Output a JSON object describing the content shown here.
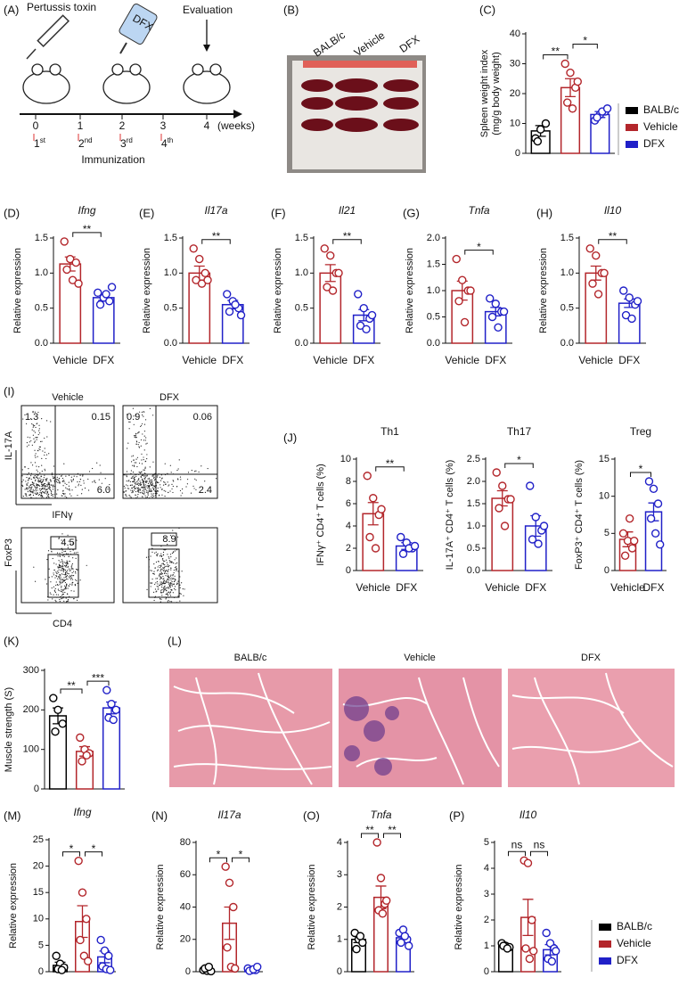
{
  "panel_labels": [
    "(A)",
    "(B)",
    "(C)",
    "(D)",
    "(E)",
    "(F)",
    "(G)",
    "(H)",
    "(I)",
    "(J)",
    "(K)",
    "(L)",
    "(M)",
    "(N)",
    "(O)",
    "(P)"
  ],
  "schematic": {
    "injection": "Pertussis toxin",
    "drug": "DFX",
    "evaluation": "Evaluation",
    "weeks": [
      "0",
      "1",
      "2",
      "3",
      "4"
    ],
    "unit": "(weeks)",
    "immunizations": [
      [
        "1",
        "st"
      ],
      [
        "2",
        "nd"
      ],
      [
        "3",
        "rd"
      ],
      [
        "4",
        "th"
      ]
    ],
    "immunization_label": "Immunization"
  },
  "photo": {
    "groups": [
      "BALB/c",
      "Vehicle",
      "DFX"
    ]
  },
  "flow": {
    "columns": [
      "Vehicle",
      "DFX"
    ],
    "top_y": "IL-17A",
    "top_x": "IFNγ",
    "bottom_y": "FoxP3",
    "bottom_x": "CD4",
    "quadrants": [
      [
        "1.3",
        "0.15",
        "6.0"
      ],
      [
        "0.9",
        "0.06",
        "2.4"
      ]
    ],
    "gates": [
      "4.5",
      "8.9"
    ]
  },
  "histology": {
    "groups": [
      "BALB/c",
      "Vehicle",
      "DFX"
    ]
  },
  "chart_data": [
    {
      "type": "bar",
      "ylabel": "Spleen weight index\n(mg/g body weight)",
      "categories": [
        "BALB/c",
        "Vehicle",
        "DFX"
      ],
      "colors": [
        "#000000",
        "#b3262b",
        "#2020c8"
      ],
      "values": [
        7.5,
        22,
        13
      ],
      "errors": [
        1.8,
        3,
        1
      ],
      "points": [
        [
          5,
          8,
          10,
          4
        ],
        [
          30,
          27,
          22,
          17,
          15,
          24
        ],
        [
          11,
          13,
          14,
          12,
          14,
          15
        ]
      ],
      "ylim": [
        0,
        40
      ],
      "yticks": [
        0,
        10,
        20,
        30,
        40
      ],
      "significance": [
        {
          "label": "**",
          "pair": [
            "BALB/c",
            "Vehicle"
          ]
        },
        {
          "label": "*",
          "pair": [
            "Vehicle",
            "DFX"
          ]
        }
      ],
      "category_labels": false,
      "legend": true
    },
    {
      "type": "bar",
      "title": "Ifng",
      "title_italic": true,
      "ylabel": "Relative  expression",
      "categories": [
        "Vehicle",
        "DFX"
      ],
      "colors": [
        "#b3262b",
        "#2020c8"
      ],
      "values": [
        1.13,
        0.65
      ],
      "errors": [
        0.1,
        0.04
      ],
      "points": [
        [
          1.45,
          1.2,
          1.15,
          1.05,
          0.9,
          0.85
        ],
        [
          0.72,
          0.65,
          0.6,
          0.55,
          0.7,
          0.8
        ]
      ],
      "ylim": [
        0,
        1.5
      ],
      "yticks": [
        {
          "value": 0,
          "label": "0.0"
        },
        0.5,
        {
          "value": 1,
          "label": "1.0"
        },
        1.5
      ],
      "significance": [
        {
          "label": "**",
          "pair": [
            "Vehicle",
            "DFX"
          ]
        }
      ],
      "category_labels": true,
      "legend": false
    },
    {
      "type": "bar",
      "title": "Il17a",
      "title_italic": true,
      "ylabel": "Relative  expression",
      "categories": [
        "Vehicle",
        "DFX"
      ],
      "colors": [
        "#b3262b",
        "#2020c8"
      ],
      "values": [
        1.0,
        0.55
      ],
      "errors": [
        0.1,
        0.06
      ],
      "points": [
        [
          1.35,
          1.2,
          1.0,
          0.9,
          0.85,
          0.9
        ],
        [
          0.7,
          0.6,
          0.5,
          0.45,
          0.55,
          0.4
        ]
      ],
      "ylim": [
        0,
        1.5
      ],
      "yticks": [
        {
          "value": 0,
          "label": "0.0"
        },
        0.5,
        {
          "value": 1,
          "label": "1.0"
        },
        1.5
      ],
      "significance": [
        {
          "label": "**",
          "pair": [
            "Vehicle",
            "DFX"
          ]
        }
      ],
      "category_labels": true,
      "legend": false
    },
    {
      "type": "bar",
      "title": "Il21",
      "title_italic": true,
      "ylabel": "Relative  expression",
      "categories": [
        "Vehicle",
        "DFX"
      ],
      "colors": [
        "#b3262b",
        "#2020c8"
      ],
      "values": [
        1.0,
        0.4
      ],
      "errors": [
        0.12,
        0.08
      ],
      "points": [
        [
          1.35,
          1.25,
          1.0,
          0.8,
          0.75,
          1.0
        ],
        [
          0.7,
          0.5,
          0.35,
          0.25,
          0.2,
          0.4
        ]
      ],
      "ylim": [
        0,
        1.5
      ],
      "yticks": [
        {
          "value": 0,
          "label": "0.0"
        },
        0.5,
        {
          "value": 1,
          "label": "1.0"
        },
        1.5
      ],
      "significance": [
        {
          "label": "**",
          "pair": [
            "Vehicle",
            "DFX"
          ]
        }
      ],
      "category_labels": true,
      "legend": false
    },
    {
      "type": "bar",
      "title": "Tnfa",
      "title_italic": true,
      "ylabel": "Relative  expression",
      "categories": [
        "Vehicle",
        "DFX"
      ],
      "colors": [
        "#b3262b",
        "#2020c8"
      ],
      "values": [
        1.0,
        0.6
      ],
      "errors": [
        0.18,
        0.08
      ],
      "points": [
        [
          1.6,
          1.2,
          1.0,
          0.8,
          0.4,
          1.0
        ],
        [
          0.85,
          0.75,
          0.6,
          0.5,
          0.3,
          0.6
        ]
      ],
      "ylim": [
        0,
        2
      ],
      "yticks": [
        {
          "value": 0,
          "label": "0.0"
        },
        0.5,
        {
          "value": 1,
          "label": "1.0"
        },
        1.5,
        {
          "value": 2,
          "label": "2.0"
        }
      ],
      "significance": [
        {
          "label": "*",
          "pair": [
            "Vehicle",
            "DFX"
          ]
        }
      ],
      "category_labels": true,
      "legend": false
    },
    {
      "type": "bar",
      "title": "Il10",
      "title_italic": true,
      "ylabel": "Relative  expression",
      "categories": [
        "Vehicle",
        "DFX"
      ],
      "colors": [
        "#b3262b",
        "#2020c8"
      ],
      "values": [
        1.0,
        0.57
      ],
      "errors": [
        0.1,
        0.06
      ],
      "points": [
        [
          1.35,
          1.25,
          1.0,
          0.85,
          0.7,
          1.0
        ],
        [
          0.75,
          0.65,
          0.55,
          0.4,
          0.35,
          0.6
        ]
      ],
      "ylim": [
        0,
        1.5
      ],
      "yticks": [
        {
          "value": 0,
          "label": "0.0"
        },
        0.5,
        {
          "value": 1,
          "label": "1.0"
        },
        1.5
      ],
      "significance": [
        {
          "label": "**",
          "pair": [
            "Vehicle",
            "DFX"
          ]
        }
      ],
      "category_labels": true,
      "legend": false
    },
    {
      "type": "bar",
      "title": "Th1",
      "title_italic": false,
      "ylabel": "IFNγ⁺ CD4⁺ T cells (%)",
      "categories": [
        "Vehicle",
        "DFX"
      ],
      "colors": [
        "#b3262b",
        "#2020c8"
      ],
      "values": [
        5.1,
        2.2
      ],
      "errors": [
        1.0,
        0.3
      ],
      "points": [
        [
          8.5,
          6.5,
          5,
          3,
          2,
          5.5
        ],
        [
          3,
          2.5,
          2,
          1.5,
          2,
          2.2
        ]
      ],
      "ylim": [
        0,
        10
      ],
      "yticks": [
        0,
        2,
        4,
        6,
        8,
        10
      ],
      "significance": [
        {
          "label": "**",
          "pair": [
            "Vehicle",
            "DFX"
          ]
        }
      ],
      "category_labels": true,
      "legend": false
    },
    {
      "type": "bar",
      "title": "Th17",
      "title_italic": false,
      "ylabel": "IL-17A⁺ CD4⁺ T cells (%)",
      "categories": [
        "Vehicle",
        "DFX"
      ],
      "colors": [
        "#b3262b",
        "#2020c8"
      ],
      "values": [
        1.62,
        1.0
      ],
      "errors": [
        0.17,
        0.23
      ],
      "points": [
        [
          2.2,
          1.9,
          1.6,
          1.4,
          1.0,
          1.6
        ],
        [
          1.9,
          1.2,
          0.9,
          0.7,
          0.6,
          1.0
        ]
      ],
      "ylim": [
        0,
        2.5
      ],
      "yticks": [
        {
          "value": 0,
          "label": "0.0"
        },
        0.5,
        {
          "value": 1,
          "label": "1.0"
        },
        1.5,
        {
          "value": 2,
          "label": "2.0"
        },
        2.5
      ],
      "significance": [
        {
          "label": "*",
          "pair": [
            "Vehicle",
            "DFX"
          ]
        }
      ],
      "category_labels": true,
      "legend": false
    },
    {
      "type": "bar",
      "title": "Treg",
      "title_italic": false,
      "ylabel": "FoxP3⁺ CD4⁺ T cells (%)",
      "categories": [
        "Vehicle",
        "DFX"
      ],
      "colors": [
        "#b3262b",
        "#2020c8"
      ],
      "values": [
        4.2,
        7.9
      ],
      "errors": [
        1.0,
        1.2
      ],
      "points": [
        [
          5,
          4,
          3,
          2,
          7,
          4
        ],
        [
          12,
          11,
          9,
          7,
          5,
          3.5
        ]
      ],
      "ylim": [
        0,
        15
      ],
      "yticks": [
        0,
        5,
        10,
        15
      ],
      "significance": [
        {
          "label": "*",
          "pair": [
            "Vehicle",
            "DFX"
          ]
        }
      ],
      "category_labels": true,
      "legend": false
    },
    {
      "type": "bar",
      "ylabel": "Muscle strength (S)",
      "categories": [
        "BALB/c",
        "Vehicle",
        "DFX"
      ],
      "colors": [
        "#000000",
        "#b3262b",
        "#2020c8"
      ],
      "values": [
        185,
        95,
        205
      ],
      "errors": [
        20,
        12,
        15
      ],
      "points": [
        [
          230,
          200,
          165,
          145
        ],
        [
          130,
          100,
          90,
          70,
          85
        ],
        [
          250,
          215,
          200,
          180,
          175
        ]
      ],
      "ylim": [
        0,
        300
      ],
      "yticks": [
        0,
        100,
        200,
        300
      ],
      "significance": [
        {
          "label": "**",
          "pair": [
            "BALB/c",
            "Vehicle"
          ]
        },
        {
          "label": "***",
          "pair": [
            "Vehicle",
            "DFX"
          ]
        }
      ],
      "category_labels": false,
      "legend": false
    },
    {
      "type": "bar",
      "title": "Ifng",
      "title_italic": true,
      "ylabel": "Relative  expression",
      "categories": [
        "BALB/c",
        "Vehicle",
        "DFX"
      ],
      "colors": [
        "#000000",
        "#b3262b",
        "#2020c8"
      ],
      "values": [
        1.2,
        9.5,
        2.8
      ],
      "errors": [
        0.6,
        3,
        1.1
      ],
      "points": [
        [
          3,
          1.5,
          0.8,
          0.5,
          0.3
        ],
        [
          21,
          15,
          10,
          6,
          3,
          2
        ],
        [
          6,
          4,
          3,
          1,
          0.5,
          0.3
        ]
      ],
      "ylim": [
        0,
        25
      ],
      "yticks": [
        0,
        5,
        10,
        15,
        20,
        25
      ],
      "significance": [
        {
          "label": "*",
          "pair": [
            "BALB/c",
            "Vehicle"
          ]
        },
        {
          "label": "*",
          "pair": [
            "Vehicle",
            "DFX"
          ]
        }
      ],
      "category_labels": false,
      "legend": false
    },
    {
      "type": "bar",
      "title": "Il17a",
      "title_italic": true,
      "ylabel": "Relative  expression",
      "categories": [
        "BALB/c",
        "Vehicle",
        "DFX"
      ],
      "colors": [
        "#000000",
        "#b3262b",
        "#2020c8"
      ],
      "values": [
        1,
        30,
        1.5
      ],
      "errors": [
        0.5,
        10,
        0.4
      ],
      "points": [
        [
          1,
          0.5,
          0.3,
          2,
          3
        ],
        [
          65,
          55,
          40,
          15,
          3,
          2
        ],
        [
          2,
          1,
          1,
          0.5,
          1.5,
          3
        ]
      ],
      "ylim": [
        0,
        80
      ],
      "yticks": [
        0,
        20,
        40,
        60,
        80
      ],
      "significance": [
        {
          "label": "*",
          "pair": [
            "BALB/c",
            "Vehicle"
          ]
        },
        {
          "label": "*",
          "pair": [
            "Vehicle",
            "DFX"
          ]
        }
      ],
      "category_labels": false,
      "legend": false
    },
    {
      "type": "bar",
      "title": "Tnfa",
      "title_italic": true,
      "ylabel": "Relative  expression",
      "categories": [
        "BALB/c",
        "Vehicle",
        "DFX"
      ],
      "colors": [
        "#000000",
        "#b3262b",
        "#2020c8"
      ],
      "values": [
        1.0,
        2.3,
        1.05
      ],
      "errors": [
        0.1,
        0.35,
        0.1
      ],
      "points": [
        [
          1.2,
          1.0,
          0.9,
          0.7,
          1.1
        ],
        [
          4,
          2.9,
          2.1,
          1.9,
          1.8,
          2.2
        ],
        [
          1.2,
          1.3,
          1.0,
          0.9,
          1.1,
          0.8
        ]
      ],
      "ylim": [
        0,
        4
      ],
      "yticks": [
        0,
        1,
        2,
        3,
        4
      ],
      "significance": [
        {
          "label": "**",
          "pair": [
            "BALB/c",
            "Vehicle"
          ]
        },
        {
          "label": "**",
          "pair": [
            "Vehicle",
            "DFX"
          ]
        }
      ],
      "category_labels": false,
      "legend": false
    },
    {
      "type": "bar",
      "title": "Il10",
      "title_italic": true,
      "ylabel": "Relative  expression",
      "categories": [
        "BALB/c",
        "Vehicle",
        "DFX"
      ],
      "colors": [
        "#000000",
        "#b3262b",
        "#2020c8"
      ],
      "values": [
        1.0,
        2.1,
        0.85
      ],
      "errors": [
        0.05,
        0.7,
        0.2
      ],
      "points": [
        [
          1.1,
          1.0,
          0.95,
          1.0,
          0.9
        ],
        [
          4.3,
          4.2,
          2,
          0.9,
          0.5,
          0.8
        ],
        [
          1.5,
          1.1,
          0.9,
          0.5,
          0.4,
          0.8
        ]
      ],
      "ylim": [
        0,
        5
      ],
      "yticks": [
        0,
        1,
        2,
        3,
        4,
        5
      ],
      "significance": [
        {
          "label": "ns",
          "pair": [
            "BALB/c",
            "Vehicle"
          ]
        },
        {
          "label": "ns",
          "pair": [
            "Vehicle",
            "DFX"
          ]
        }
      ],
      "category_labels": false,
      "legend": true
    }
  ]
}
